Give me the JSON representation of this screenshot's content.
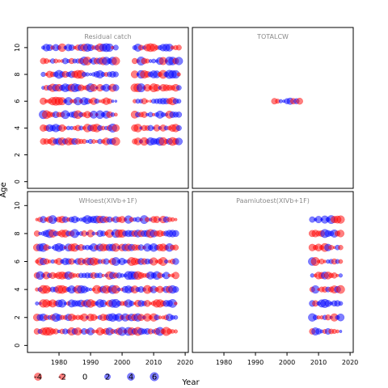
{
  "chart_data": {
    "type": "scatter",
    "encoding": "bubble-residuals",
    "xlabel": "Year",
    "ylabel": "Age",
    "x_ticks": [
      1980,
      1990,
      2000,
      2010,
      2020
    ],
    "y_ticks": [
      0,
      2,
      4,
      6,
      8,
      10
    ],
    "xlim": [
      1970,
      2021
    ],
    "ylim_top": [
      -0.5,
      11.5
    ],
    "ylim_bottom": [
      -0.5,
      11.0
    ],
    "colors": {
      "positive": "#0000ff",
      "negative": "#ff0000"
    },
    "legend": {
      "placement": "bottom-left",
      "values": [
        -4,
        -2,
        0,
        2,
        4,
        6
      ],
      "labels": [
        "-4",
        "-2",
        "0",
        "2",
        "4",
        "6"
      ]
    },
    "panels": [
      {
        "title": "Residual catch",
        "years": [
          1975,
          2018
        ],
        "ages": [
          3,
          10
        ],
        "gap": [
          1998,
          2004
        ],
        "seed": 11
      },
      {
        "title": "TOTALCW",
        "years": [
          1996,
          2004
        ],
        "ages": [
          6,
          6
        ],
        "gap": null,
        "seed": 23
      },
      {
        "title": "WHoest(XIVb+1F)",
        "years": [
          1973,
          2017
        ],
        "ages": [
          1,
          9
        ],
        "gap": null,
        "seed": 37
      },
      {
        "title": "Paamiutoest(XIVb+1F)",
        "years": [
          2008,
          2017
        ],
        "ages": [
          1,
          9
        ],
        "gap": null,
        "seed": 51
      }
    ]
  }
}
